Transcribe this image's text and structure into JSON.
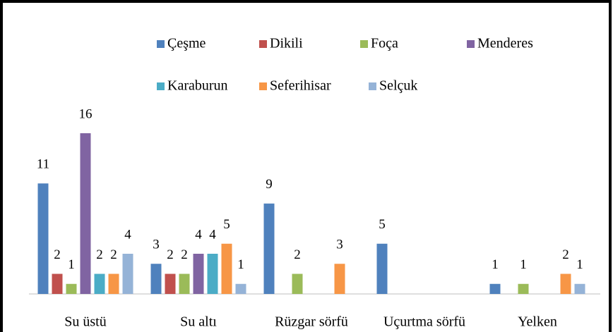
{
  "chart_data": {
    "type": "bar",
    "categories": [
      "Su üstü",
      "Su altı",
      "Rüzgar sörfü",
      "Uçurtma sörfü",
      "Yelken"
    ],
    "series": [
      {
        "name": "Çeşme",
        "color": "#4f81bd",
        "values": [
          11,
          3,
          9,
          5,
          1
        ]
      },
      {
        "name": "Dikili",
        "color": "#c0504d",
        "values": [
          2,
          2,
          null,
          null,
          null
        ]
      },
      {
        "name": "Foça",
        "color": "#9bbb59",
        "values": [
          1,
          2,
          2,
          null,
          1
        ]
      },
      {
        "name": "Menderes",
        "color": "#8064a2",
        "values": [
          16,
          4,
          null,
          null,
          null
        ]
      },
      {
        "name": "Karaburun",
        "color": "#4bacc6",
        "values": [
          2,
          4,
          null,
          null,
          null
        ]
      },
      {
        "name": "Seferihisar",
        "color": "#f79646",
        "values": [
          2,
          5,
          3,
          null,
          2
        ]
      },
      {
        "name": "Selçuk",
        "color": "#95b3d7",
        "values": [
          4,
          1,
          null,
          null,
          1
        ]
      }
    ],
    "ylim": [
      0,
      16
    ],
    "legend": "top"
  }
}
